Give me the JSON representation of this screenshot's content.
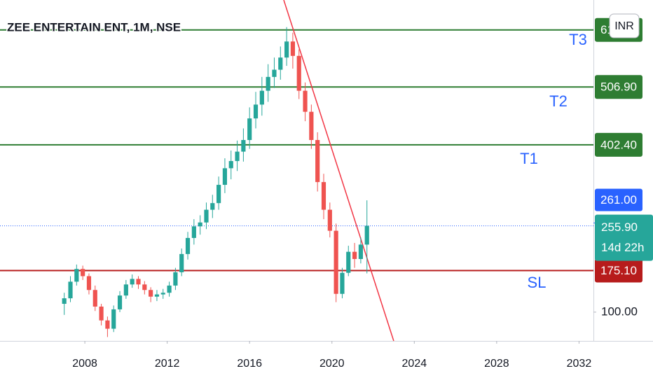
{
  "chart_data": {
    "type": "candlestick",
    "title": "ZEE ENTERTAIN ENT, 1M, NSE",
    "currency": "INR",
    "xlim": [
      2003.88,
      2032.7
    ],
    "xticks": [
      2008,
      2012,
      2016,
      2020,
      2024,
      2028,
      2032
    ],
    "ylim": [
      48,
      664
    ],
    "yticks": [
      {
        "value": 100,
        "label": "100.00"
      }
    ],
    "up_color": "#26a69a",
    "down_color": "#ef5350",
    "x": [
      2007.0,
      2007.3,
      2007.6,
      2007.9,
      2008.2,
      2008.5,
      2008.8,
      2009.1,
      2009.4,
      2009.7,
      2010.0,
      2010.3,
      2010.6,
      2010.9,
      2011.2,
      2011.5,
      2011.8,
      2012.1,
      2012.4,
      2012.7,
      2013.0,
      2013.3,
      2013.6,
      2013.9,
      2014.2,
      2014.5,
      2014.8,
      2015.1,
      2015.4,
      2015.7,
      2016.0,
      2016.3,
      2016.6,
      2016.9,
      2017.2,
      2017.5,
      2017.8,
      2018.1,
      2018.4,
      2018.7,
      2019.0,
      2019.3,
      2019.6,
      2019.9,
      2020.2,
      2020.5,
      2020.8,
      2021.1,
      2021.4,
      2021.7
    ],
    "open": [
      115,
      125,
      155,
      178,
      165,
      140,
      110,
      85,
      70,
      105,
      130,
      150,
      160,
      150,
      140,
      128,
      132,
      135,
      148,
      172,
      205,
      234,
      255,
      262,
      285,
      297,
      330,
      360,
      373,
      390,
      411,
      450,
      475,
      500,
      525,
      538,
      560,
      589,
      563,
      500,
      462,
      411,
      335,
      285,
      247,
      133,
      171,
      209,
      196,
      222
    ],
    "high": [
      135,
      165,
      186,
      184,
      170,
      148,
      115,
      92,
      112,
      138,
      158,
      168,
      165,
      156,
      145,
      140,
      142,
      155,
      180,
      215,
      245,
      268,
      275,
      298,
      312,
      345,
      378,
      392,
      410,
      432,
      470,
      498,
      525,
      548,
      560,
      580,
      615,
      605,
      575,
      515,
      475,
      425,
      350,
      298,
      260,
      180,
      220,
      225,
      235,
      302
    ],
    "low": [
      95,
      118,
      148,
      158,
      132,
      102,
      76,
      55,
      64,
      100,
      124,
      144,
      142,
      132,
      118,
      120,
      124,
      128,
      140,
      165,
      195,
      222,
      240,
      250,
      270,
      285,
      315,
      340,
      355,
      372,
      395,
      432,
      455,
      480,
      505,
      520,
      545,
      540,
      485,
      445,
      395,
      318,
      268,
      235,
      118,
      125,
      165,
      180,
      188,
      170
    ],
    "close": [
      125,
      155,
      178,
      165,
      140,
      110,
      85,
      70,
      105,
      130,
      150,
      160,
      150,
      140,
      128,
      132,
      135,
      148,
      172,
      205,
      234,
      255,
      262,
      285,
      297,
      330,
      360,
      373,
      390,
      411,
      450,
      475,
      500,
      525,
      538,
      560,
      589,
      563,
      500,
      462,
      411,
      335,
      285,
      247,
      133,
      171,
      209,
      196,
      222,
      255.9
    ],
    "levels": [
      {
        "name": "T3",
        "value": 610,
        "value_label": "610.00",
        "color": "#2e7d32"
      },
      {
        "name": "T2",
        "value": 506.9,
        "value_label": "506.90",
        "color": "#2e7d32"
      },
      {
        "name": "T1",
        "value": 402.4,
        "value_label": "402.40",
        "color": "#2e7d32"
      },
      {
        "name": "SL",
        "value": 175.1,
        "value_label": "175.10",
        "color": "#b71c1c"
      }
    ],
    "alert": {
      "value": 261,
      "value_label": "261.00",
      "color": "#2962ff"
    },
    "last_price": {
      "value": 255.9,
      "value_label": "255.90",
      "countdown": "14d 22h",
      "color": "#26a69a",
      "line_color": "#2962ff"
    },
    "trendline": {
      "x": [
        2017.66,
        2023.0
      ],
      "y": [
        664,
        48
      ],
      "color": "#f23645"
    }
  }
}
